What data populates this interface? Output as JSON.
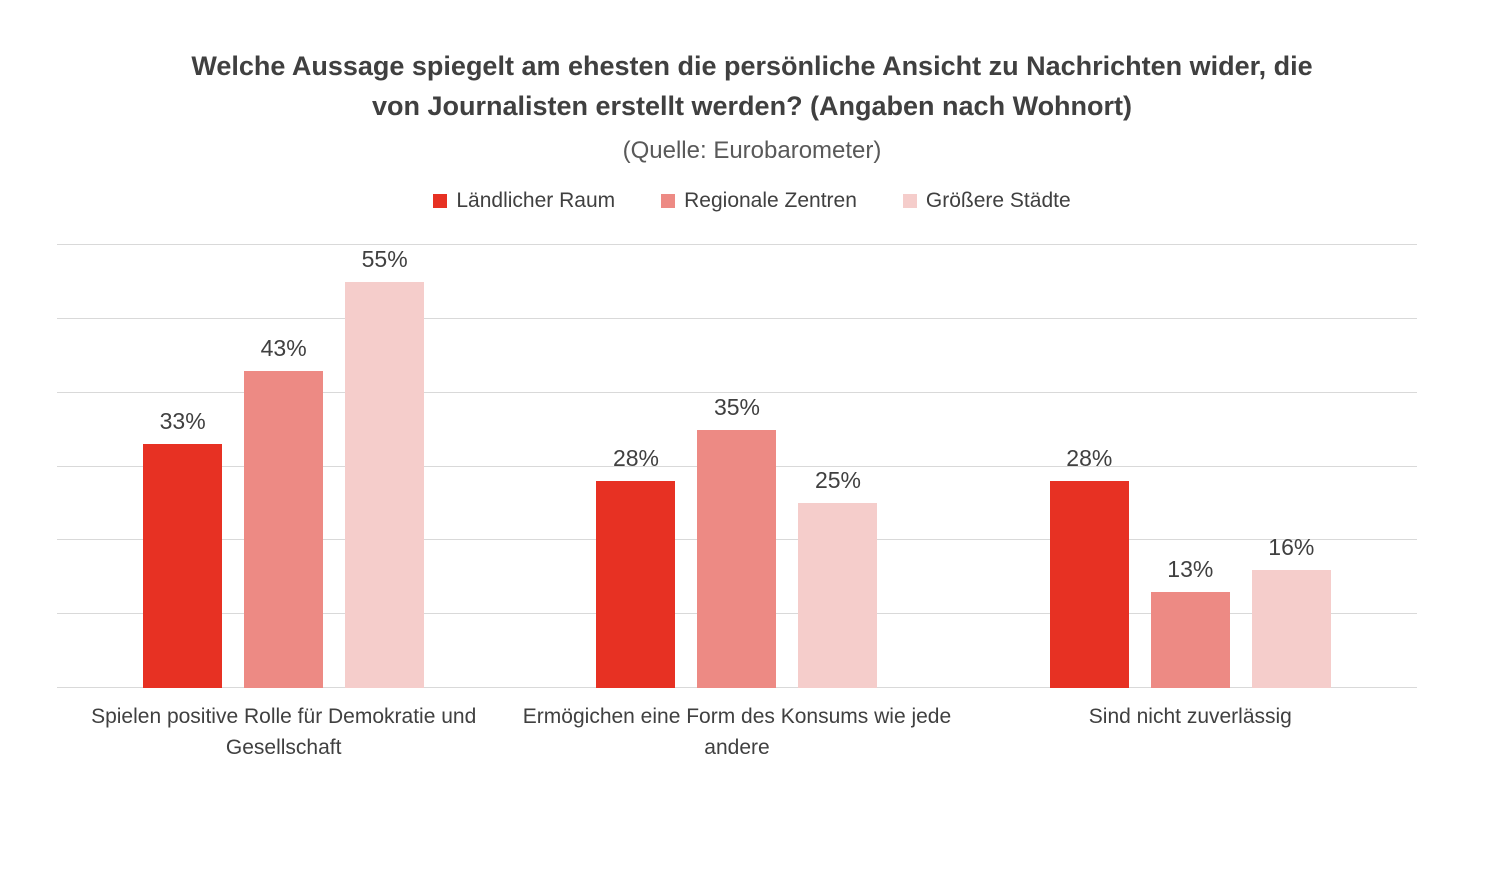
{
  "chart_data": {
    "type": "bar",
    "title": "Welche Aussage spiegelt am ehesten die persönliche Ansicht zu Nachrichten wider, die von Journalisten erstellt werden? (Angaben nach Wohnort)",
    "subtitle": "(Quelle: Eurobarometer)",
    "categories": [
      "Spielen positive Rolle für Demokratie und Gesellschaft",
      "Ermögichen eine Form des Konsums wie jede andere",
      "Sind nicht zuverlässig"
    ],
    "series": [
      {
        "name": "Ländlicher Raum",
        "color": "#e73123",
        "values": [
          33,
          28,
          28
        ]
      },
      {
        "name": "Regionale Zentren",
        "color": "#ed8a84",
        "values": [
          43,
          35,
          13
        ]
      },
      {
        "name": "Größere Städte",
        "color": "#f5cdcb",
        "values": [
          55,
          25,
          16
        ]
      }
    ],
    "value_suffix": "%",
    "xlabel": "",
    "ylabel": "",
    "ylim": [
      0,
      60
    ],
    "gridline_step": 10,
    "grid": true,
    "legend_position": "top",
    "data_labels": true
  },
  "colors": {
    "background": "#ffffff",
    "gridline": "#d9d9d9",
    "title_text": "#404040",
    "subtitle_text": "#595959",
    "label_text": "#404040"
  }
}
